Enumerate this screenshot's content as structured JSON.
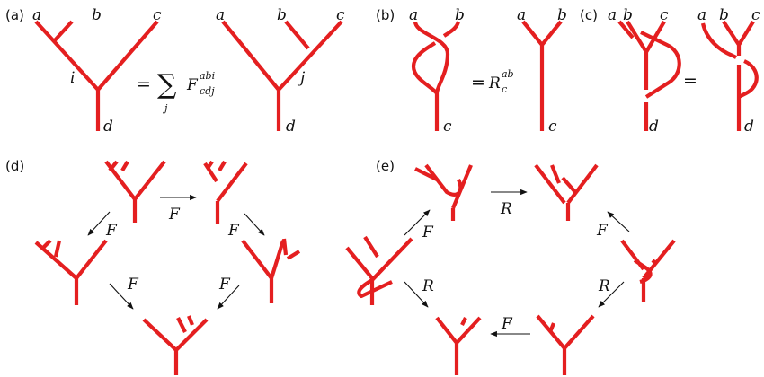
{
  "panels": {
    "a": {
      "label": "(a)",
      "lhs": {
        "a": "a",
        "b": "b",
        "c": "c",
        "i": "i",
        "d": "d"
      },
      "rhs": {
        "a": "a",
        "b": "b",
        "c": "c",
        "j": "j",
        "d": "d"
      },
      "equation": {
        "eq": "=",
        "sum": "∑",
        "index": "j",
        "F": "F",
        "sup": "abi",
        "sub": "cdj"
      }
    },
    "b": {
      "label": "(b)",
      "lhs": {
        "a": "a",
        "b": "b",
        "c": "c"
      },
      "rhs": {
        "a": "a",
        "b": "b",
        "c": "c"
      },
      "equation": {
        "eq": "=",
        "R": "R",
        "sup": "ab",
        "sub": "c"
      }
    },
    "c": {
      "label": "(c)",
      "lhs": {
        "a": "a",
        "b": "b",
        "c": "c",
        "d": "d"
      },
      "rhs": {
        "a": "a",
        "b": "b",
        "c": "c",
        "d": "d"
      },
      "eq": "="
    },
    "d": {
      "label": "(d)",
      "arrows": [
        "F",
        "F",
        "F",
        "F",
        "F"
      ]
    },
    "e": {
      "label": "(e)",
      "arrows": [
        "F",
        "R",
        "F",
        "R",
        "R",
        "F"
      ]
    }
  },
  "colors": {
    "tree": "#e41f20",
    "arrow": "#111111",
    "text": "#111111"
  }
}
